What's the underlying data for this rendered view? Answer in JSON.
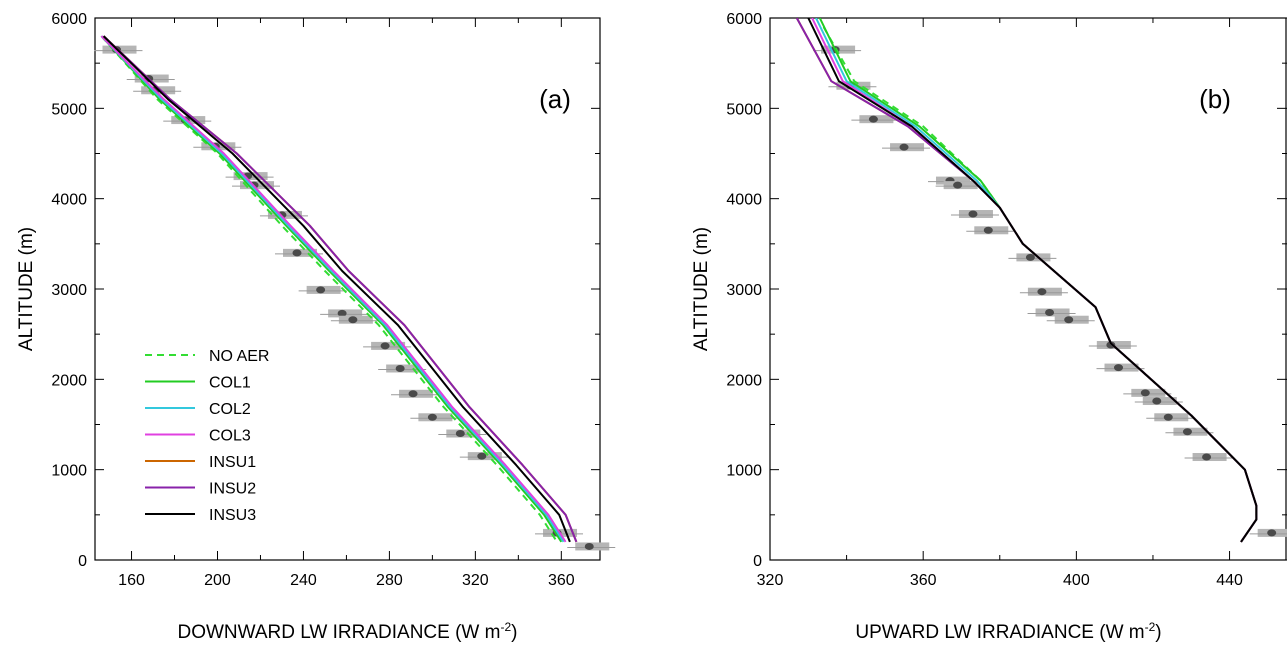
{
  "chart_data": [
    {
      "type": "line",
      "panel_label": "(a)",
      "xlabel": "DOWNWARD LW IRRADIANCE (W m",
      "xlabel_sup": "-2",
      "xlabel_end": ")",
      "ylabel": "ALTITUDE (m)",
      "xlim": [
        143,
        378
      ],
      "ylim": [
        0,
        6000
      ],
      "xticks": [
        160,
        200,
        240,
        280,
        320,
        360
      ],
      "yticks": [
        0,
        1000,
        2000,
        3000,
        4000,
        5000,
        6000
      ],
      "legend_position": "lower-left",
      "series": [
        {
          "name": "NO AER",
          "color": "#33dd33",
          "dash": true,
          "x": [
            146,
            172,
            200,
            230,
            250,
            275,
            305,
            330,
            350,
            358
          ],
          "y": [
            5800,
            5100,
            4500,
            3700,
            3200,
            2600,
            1700,
            1050,
            500,
            200
          ]
        },
        {
          "name": "COL1",
          "color": "#22cc22",
          "dash": false,
          "x": [
            146,
            173,
            201,
            232,
            252,
            277,
            307,
            332,
            352,
            360
          ],
          "y": [
            5800,
            5100,
            4500,
            3700,
            3200,
            2600,
            1700,
            1050,
            500,
            200
          ]
        },
        {
          "name": "COL2",
          "color": "#33c8dd",
          "dash": false,
          "x": [
            146,
            174,
            202,
            233,
            253,
            278,
            308,
            333,
            353,
            361
          ],
          "y": [
            5800,
            5100,
            4500,
            3700,
            3200,
            2600,
            1700,
            1050,
            500,
            200
          ]
        },
        {
          "name": "COL3",
          "color": "#e040e0",
          "dash": false,
          "x": [
            146,
            175,
            203,
            234,
            254,
            279,
            309,
            334,
            354,
            362
          ],
          "y": [
            5800,
            5100,
            4500,
            3700,
            3200,
            2600,
            1700,
            1050,
            500,
            200
          ]
        },
        {
          "name": "INSU1",
          "color": "#cc6600",
          "dash": false,
          "x": [
            147,
            178,
            209,
            243,
            261,
            287,
            317,
            342,
            362,
            367
          ],
          "y": [
            5800,
            5100,
            4500,
            3700,
            3200,
            2600,
            1700,
            1050,
            500,
            200
          ]
        },
        {
          "name": "INSU2",
          "color": "#8822aa",
          "dash": false,
          "x": [
            147,
            178,
            209,
            243,
            261,
            287,
            317,
            342,
            362,
            367
          ],
          "y": [
            5800,
            5100,
            4500,
            3700,
            3200,
            2600,
            1700,
            1050,
            500,
            200
          ]
        },
        {
          "name": "INSU3",
          "color": "#000000",
          "dash": false,
          "x": [
            147,
            177,
            207,
            240,
            258,
            284,
            314,
            339,
            359,
            364
          ],
          "y": [
            5800,
            5100,
            4500,
            3700,
            3200,
            2600,
            1700,
            1050,
            500,
            200
          ]
        }
      ],
      "observations": {
        "x": [
          153,
          168,
          171,
          185,
          199,
          214,
          217,
          230,
          237,
          248,
          258,
          263,
          278,
          285,
          291,
          300,
          313,
          323,
          358,
          373
        ],
        "y": [
          5650,
          5330,
          5200,
          4870,
          4580,
          4250,
          4150,
          3820,
          3400,
          2990,
          2730,
          2660,
          2370,
          2120,
          1840,
          1580,
          1400,
          1150,
          300,
          150
        ]
      }
    },
    {
      "type": "line",
      "panel_label": "(b)",
      "xlabel": "UPWARD LW IRRADIANCE (W m",
      "xlabel_sup": "-2",
      "xlabel_end": ")",
      "ylabel": "ALTITUDE (m)",
      "xlim": [
        320,
        455
      ],
      "ylim": [
        0,
        6000
      ],
      "xticks": [
        320,
        360,
        400,
        440
      ],
      "yticks": [
        0,
        1000,
        2000,
        3000,
        4000,
        5000,
        6000
      ],
      "series": [
        {
          "name": "NO AER",
          "color": "#33dd33",
          "dash": true,
          "x": [
            334,
            342,
            360,
            375,
            380,
            386,
            405,
            409,
            430,
            444,
            447,
            447,
            443
          ],
          "y": [
            5900,
            5300,
            4800,
            4200,
            3900,
            3500,
            2800,
            2400,
            1600,
            1000,
            600,
            450,
            200
          ]
        },
        {
          "name": "COL1",
          "color": "#22cc22",
          "dash": false,
          "x": [
            333,
            341,
            359,
            375,
            380,
            386,
            405,
            409,
            430,
            444,
            447,
            447,
            443
          ],
          "y": [
            6000,
            5300,
            4800,
            4200,
            3900,
            3500,
            2800,
            2400,
            1600,
            1000,
            600,
            450,
            200
          ]
        },
        {
          "name": "COL2",
          "color": "#33c8dd",
          "dash": false,
          "x": [
            332,
            340,
            358,
            374,
            380,
            386,
            405,
            409,
            430,
            444,
            447,
            447,
            443
          ],
          "y": [
            6000,
            5300,
            4800,
            4200,
            3900,
            3500,
            2800,
            2400,
            1600,
            1000,
            600,
            450,
            200
          ]
        },
        {
          "name": "COL3",
          "color": "#e040e0",
          "dash": false,
          "x": [
            331,
            339,
            357,
            373,
            380,
            386,
            405,
            409,
            430,
            444,
            447,
            447,
            443
          ],
          "y": [
            6000,
            5300,
            4800,
            4200,
            3900,
            3500,
            2800,
            2400,
            1600,
            1000,
            600,
            450,
            200
          ]
        },
        {
          "name": "INSU1",
          "color": "#cc6600",
          "dash": false,
          "x": [
            327,
            336,
            356,
            373,
            380,
            386,
            405,
            409,
            430,
            444,
            447,
            447,
            443
          ],
          "y": [
            6000,
            5300,
            4800,
            4200,
            3900,
            3500,
            2800,
            2400,
            1600,
            1000,
            600,
            450,
            200
          ]
        },
        {
          "name": "INSU2",
          "color": "#8822aa",
          "dash": false,
          "x": [
            327,
            336,
            356,
            373,
            380,
            386,
            405,
            409,
            430,
            444,
            447,
            447,
            443
          ],
          "y": [
            6000,
            5300,
            4800,
            4200,
            3900,
            3500,
            2800,
            2400,
            1600,
            1000,
            600,
            450,
            200
          ]
        },
        {
          "name": "INSU3",
          "color": "#000000",
          "dash": false,
          "x": [
            330,
            338,
            357,
            373,
            380,
            386,
            405,
            409,
            430,
            444,
            447,
            447,
            443
          ],
          "y": [
            6000,
            5300,
            4800,
            4200,
            3900,
            3500,
            2800,
            2400,
            1600,
            1000,
            600,
            450,
            200
          ]
        }
      ],
      "observations": {
        "x": [
          337,
          341,
          347,
          355,
          367,
          369,
          373,
          377,
          388,
          391,
          393,
          398,
          409,
          411,
          418,
          421,
          424,
          429,
          434,
          451
        ],
        "y": [
          5650,
          5250,
          4880,
          4570,
          4200,
          4150,
          3830,
          3650,
          3350,
          2970,
          2740,
          2660,
          2380,
          2130,
          1850,
          1760,
          1580,
          1420,
          1140,
          300
        ]
      }
    }
  ]
}
